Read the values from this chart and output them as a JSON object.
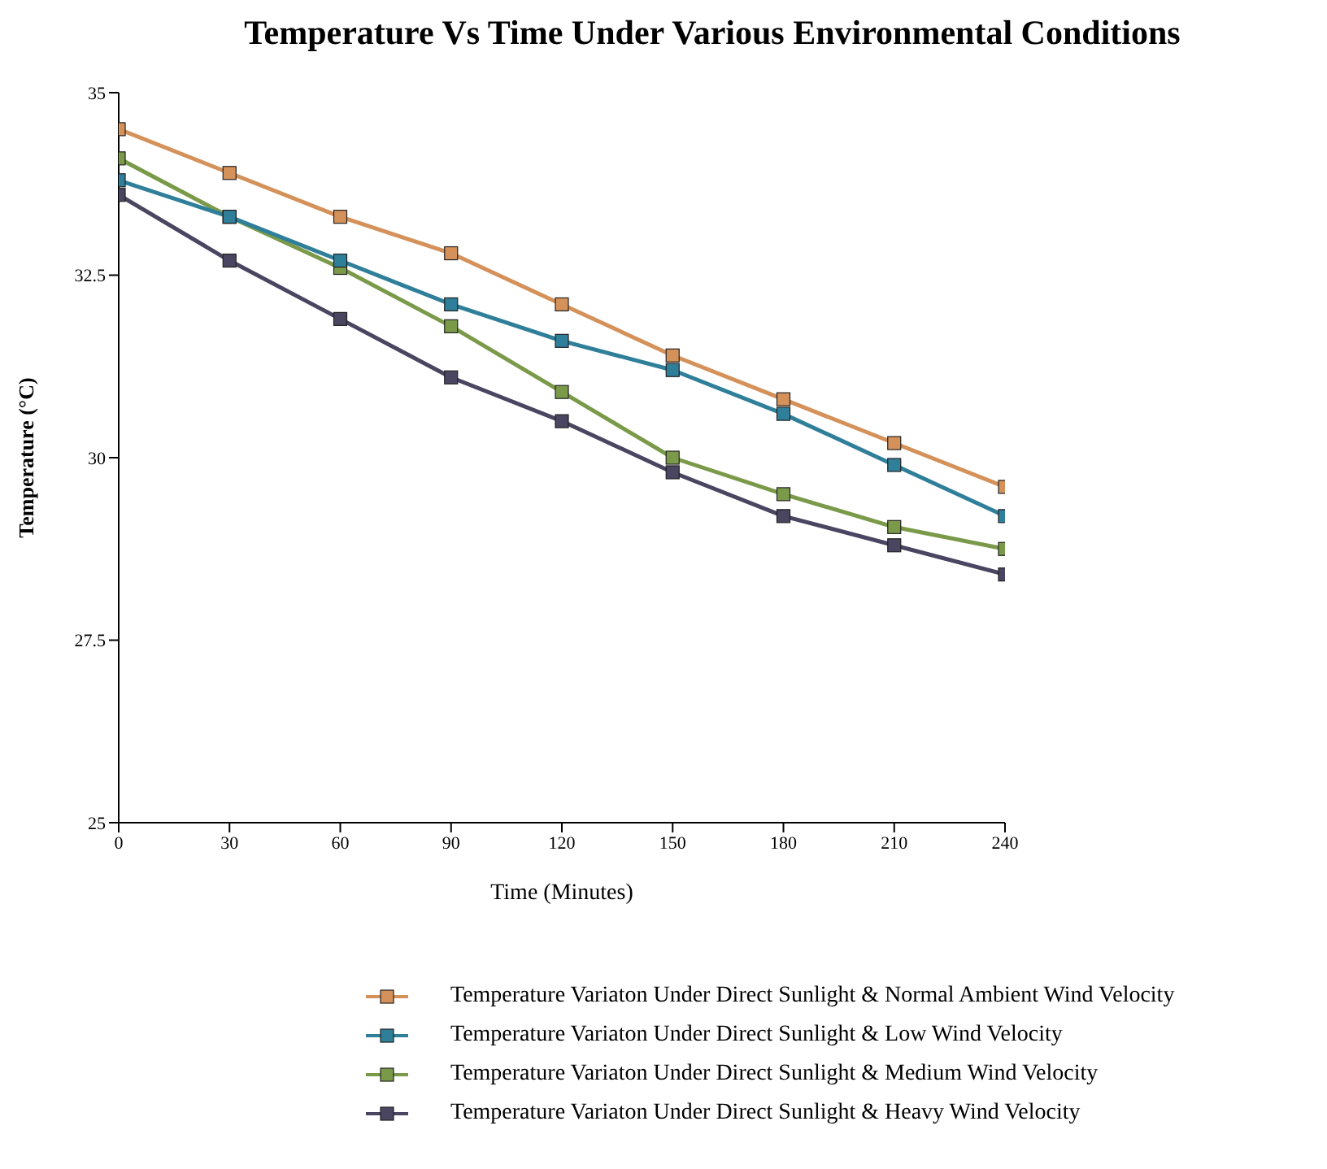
{
  "chart_data": {
    "type": "line",
    "title": "Temperature Vs Time Under Various Environmental Conditions",
    "xlabel": "Time (Minutes)",
    "ylabel": "Temperature (°C)",
    "x": [
      0,
      30,
      60,
      90,
      120,
      150,
      180,
      210,
      240
    ],
    "xlim": [
      0,
      240
    ],
    "xticks": [
      0,
      30,
      60,
      90,
      120,
      150,
      180,
      210,
      240
    ],
    "ylim": [
      25,
      35
    ],
    "yticks": [
      25,
      27.5,
      30,
      32.5,
      35
    ],
    "grid": false,
    "legend": "bottom",
    "marker": "square",
    "line_style": "solid",
    "series": [
      {
        "name": "Temperature Variaton Under Direct Sunlight & Normal Ambient Wind Velocity",
        "color": "#d4915a",
        "values": [
          34.5,
          33.9,
          33.3,
          32.8,
          32.1,
          31.4,
          30.8,
          30.2,
          29.6
        ]
      },
      {
        "name": "Temperature Variaton Under Direct Sunlight & Low Wind Velocity",
        "color": "#2f7f9a",
        "values": [
          33.8,
          33.3,
          32.7,
          32.1,
          31.6,
          31.2,
          30.6,
          29.9,
          29.2
        ]
      },
      {
        "name": "Temperature Variaton Under Direct Sunlight & Medium Wind Velocity",
        "color": "#7a9a4a",
        "values": [
          34.1,
          33.3,
          32.6,
          31.8,
          30.9,
          30.0,
          29.5,
          29.05,
          28.75
        ]
      },
      {
        "name": "Temperature Variaton Under Direct Sunlight & Heavy Wind Velocity",
        "color": "#4a4560",
        "values": [
          33.6,
          32.7,
          31.9,
          31.1,
          30.5,
          29.8,
          29.2,
          28.8,
          28.4
        ]
      }
    ]
  }
}
